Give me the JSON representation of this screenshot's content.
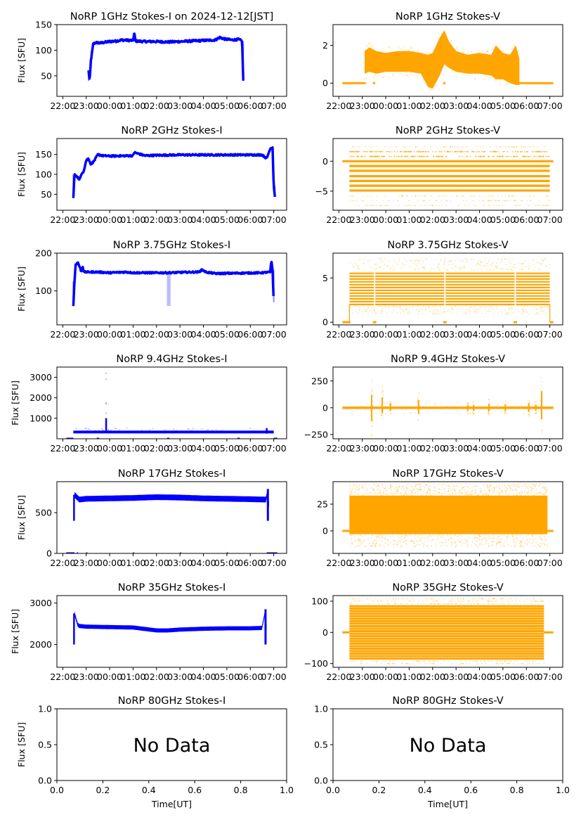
{
  "chart_data": [
    {
      "id": "i1",
      "type": "scatter",
      "title": "NoRP 1GHz Stokes-I on 2024-12-12[JST]",
      "ylabel": "Flux [SFU]",
      "xlabel": "",
      "color": "#0000ff",
      "xticks": [
        "22:00",
        "23:00",
        "00:00",
        "01:00",
        "02:00",
        "03:00",
        "04:00",
        "05:00",
        "06:00",
        "07:00"
      ],
      "xlim_hours": [
        -0.25,
        9.55
      ],
      "yticks": [
        50,
        100,
        150
      ],
      "ylim": [
        10,
        150
      ],
      "series": {
        "name": "Stokes-I",
        "start_h": 1.1,
        "end_h": 7.7,
        "points": [
          [
            1.1,
            60
          ],
          [
            1.15,
            40
          ],
          [
            1.2,
            80
          ],
          [
            1.3,
            112
          ],
          [
            1.4,
            115
          ],
          [
            1.6,
            114
          ],
          [
            2.0,
            117
          ],
          [
            2.3,
            118
          ],
          [
            2.5,
            120
          ],
          [
            3.0,
            119
          ],
          [
            3.05,
            135
          ],
          [
            3.1,
            118
          ],
          [
            3.5,
            117
          ],
          [
            4.0,
            117
          ],
          [
            4.5,
            116
          ],
          [
            5.0,
            117
          ],
          [
            5.5,
            118
          ],
          [
            6.0,
            119
          ],
          [
            6.5,
            120
          ],
          [
            6.7,
            125
          ],
          [
            6.9,
            122
          ],
          [
            7.2,
            120
          ],
          [
            7.5,
            121
          ],
          [
            7.65,
            118
          ],
          [
            7.7,
            40
          ]
        ]
      }
    },
    {
      "id": "v1",
      "type": "scatter",
      "title": "NoRP 1GHz Stokes-V",
      "ylabel": "",
      "xlabel": "",
      "color": "#ffa500",
      "xticks": [
        "22:00",
        "23:00",
        "00:00",
        "01:00",
        "02:00",
        "03:00",
        "04:00",
        "05:00",
        "06:00",
        "07:00"
      ],
      "xlim_hours": [
        -0.25,
        9.55
      ],
      "yticks": [
        0,
        2
      ],
      "ylim": [
        -0.7,
        3.1
      ],
      "series": {
        "name": "Stokes-V",
        "zero_segments": [
          [
            0.15,
            1.15
          ],
          [
            1.45,
            1.55
          ],
          [
            4.45,
            4.55
          ],
          [
            7.45,
            9.15
          ]
        ],
        "band": [
          [
            1.1,
            0.5,
            1.7
          ],
          [
            1.3,
            0.6,
            1.9
          ],
          [
            1.6,
            0.5,
            1.7
          ],
          [
            2.0,
            0.6,
            1.6
          ],
          [
            2.5,
            0.6,
            1.7
          ],
          [
            3.0,
            0.6,
            1.7
          ],
          [
            3.5,
            0.5,
            1.6
          ],
          [
            3.8,
            -0.2,
            1.5
          ],
          [
            4.0,
            -0.3,
            1.6
          ],
          [
            4.3,
            0.4,
            2.4
          ],
          [
            4.5,
            1.0,
            2.8
          ],
          [
            4.7,
            0.8,
            2.2
          ],
          [
            5.0,
            0.6,
            1.7
          ],
          [
            5.5,
            0.5,
            1.5
          ],
          [
            6.0,
            0.5,
            1.6
          ],
          [
            6.5,
            0.4,
            1.5
          ],
          [
            6.7,
            0.2,
            2.0
          ],
          [
            7.0,
            0.2,
            1.6
          ],
          [
            7.3,
            0.0,
            1.5
          ],
          [
            7.55,
            -0.1,
            2.0
          ],
          [
            7.7,
            -0.1,
            1.3
          ]
        ]
      }
    },
    {
      "id": "i2",
      "type": "scatter",
      "title": "NoRP 2GHz Stokes-I",
      "ylabel": "Flux [SFU]",
      "xlabel": "",
      "color": "#0000ff",
      "xticks": [
        "22:00",
        "23:00",
        "00:00",
        "01:00",
        "02:00",
        "03:00",
        "04:00",
        "05:00",
        "06:00",
        "07:00"
      ],
      "xlim_hours": [
        -0.25,
        9.55
      ],
      "yticks": [
        50,
        100,
        150
      ],
      "ylim": [
        10,
        190
      ],
      "series": {
        "name": "Stokes-I",
        "points": [
          [
            0.45,
            40
          ],
          [
            0.5,
            100
          ],
          [
            0.7,
            88
          ],
          [
            0.9,
            110
          ],
          [
            1.0,
            135
          ],
          [
            1.1,
            140
          ],
          [
            1.2,
            125
          ],
          [
            1.35,
            135
          ],
          [
            1.5,
            150
          ],
          [
            1.7,
            147
          ],
          [
            2.0,
            146
          ],
          [
            3.0,
            147
          ],
          [
            3.05,
            155
          ],
          [
            3.5,
            147
          ],
          [
            4.0,
            148
          ],
          [
            5.0,
            149
          ],
          [
            6.0,
            149
          ],
          [
            7.0,
            149
          ],
          [
            8.0,
            149
          ],
          [
            8.5,
            149
          ],
          [
            8.7,
            140
          ],
          [
            8.85,
            165
          ],
          [
            8.95,
            168
          ],
          [
            9.0,
            70
          ],
          [
            9.05,
            45
          ]
        ]
      }
    },
    {
      "id": "v2",
      "type": "scatter",
      "title": "NoRP 2GHz Stokes-V",
      "ylabel": "",
      "xlabel": "",
      "color": "#ffa500",
      "xticks": [
        "22:00",
        "23:00",
        "00:00",
        "01:00",
        "02:00",
        "03:00",
        "04:00",
        "05:00",
        "06:00",
        "07:00"
      ],
      "xlim_hours": [
        -0.25,
        9.55
      ],
      "yticks": [
        -5,
        0
      ],
      "ylim": [
        -8.2,
        3.8
      ],
      "series": {
        "name": "Stokes-V",
        "quantized_levels": [
          -7.4,
          -6.6,
          -5.8,
          -4.9,
          -4.1,
          -3.3,
          -2.5,
          -1.6,
          -0.8,
          0,
          0.8,
          1.6,
          2.4
        ],
        "dense_levels": [
          -4.9,
          -4.1,
          -3.3,
          -2.5,
          -1.6,
          -0.8,
          0
        ],
        "start_h": 0.45,
        "end_h": 9.0,
        "zero_segments": [
          [
            0.15,
            0.45
          ],
          [
            9.0,
            9.15
          ]
        ]
      }
    },
    {
      "id": "i3",
      "type": "scatter",
      "title": "NoRP 3.75GHz Stokes-I",
      "ylabel": "Flux [SFU]",
      "xlabel": "",
      "color": "#0000ff",
      "xticks": [
        "22:00",
        "23:00",
        "00:00",
        "01:00",
        "02:00",
        "03:00",
        "04:00",
        "05:00",
        "06:00",
        "07:00"
      ],
      "xlim_hours": [
        -0.25,
        9.55
      ],
      "yticks": [
        100,
        200
      ],
      "ylim": [
        10,
        200
      ],
      "series": {
        "name": "Stokes-I",
        "points": [
          [
            0.45,
            60
          ],
          [
            0.5,
            125
          ],
          [
            0.55,
            170
          ],
          [
            0.65,
            175
          ],
          [
            0.8,
            150
          ],
          [
            0.85,
            165
          ],
          [
            0.9,
            150
          ],
          [
            1.5,
            150
          ],
          [
            2.0,
            148
          ],
          [
            2.7,
            150
          ],
          [
            3.0,
            148
          ],
          [
            4.0,
            148
          ],
          [
            4.5,
            148
          ],
          [
            5.0,
            149
          ],
          [
            5.8,
            150
          ],
          [
            5.95,
            156
          ],
          [
            6.1,
            150
          ],
          [
            6.5,
            146
          ],
          [
            7.5,
            147
          ],
          [
            8.5,
            148
          ],
          [
            8.85,
            150
          ],
          [
            8.9,
            180
          ],
          [
            8.95,
            155
          ],
          [
            9.0,
            70
          ]
        ],
        "dropout": {
          "start_h": 4.45,
          "end_h": 4.6,
          "min": 60
        }
      }
    },
    {
      "id": "v3",
      "type": "scatter",
      "title": "NoRP 3.75GHz Stokes-V",
      "ylabel": "",
      "xlabel": "",
      "color": "#ffa500",
      "xticks": [
        "22:00",
        "23:00",
        "00:00",
        "01:00",
        "02:00",
        "03:00",
        "04:00",
        "05:00",
        "06:00",
        "07:00"
      ],
      "xlim_hours": [
        -0.25,
        9.55
      ],
      "yticks": [
        0,
        5
      ],
      "ylim": [
        -0.3,
        7.8
      ],
      "series": {
        "name": "Stokes-V",
        "band_min": 2.0,
        "band_max": 5.8,
        "scatter_min": 0.9,
        "scatter_max": 7.2,
        "start_h": 0.45,
        "end_h": 9.0,
        "gaps_h": [
          1.5,
          4.5,
          7.5
        ],
        "zero_segments": [
          [
            0.15,
            0.5
          ],
          [
            1.45,
            1.6
          ],
          [
            4.45,
            4.6
          ],
          [
            7.45,
            7.6
          ],
          [
            9.0,
            9.15
          ]
        ]
      }
    },
    {
      "id": "i4",
      "type": "scatter",
      "title": "NoRP 9.4GHz Stokes-I",
      "ylabel": "Flux [SFU]",
      "xlabel": "",
      "color": "#0000ff",
      "xticks": [
        "22:00",
        "23:00",
        "00:00",
        "01:00",
        "02:00",
        "03:00",
        "04:00",
        "05:00",
        "06:00",
        "07:00"
      ],
      "xlim_hours": [
        -0.25,
        9.55
      ],
      "yticks": [
        1000,
        2000,
        3000
      ],
      "ylim": [
        0,
        3500
      ],
      "series": {
        "name": "Stokes-I",
        "baseline": 330,
        "start_h": 0.45,
        "end_h": 9.0,
        "spike": {
          "h": 1.85,
          "values": [
            500,
            800,
            1000,
            1250,
            1700,
            1750,
            2900,
            3200
          ]
        },
        "zero_segments": [
          [
            0.15,
            0.45
          ],
          [
            1.45,
            1.55
          ],
          [
            4.45,
            4.55
          ],
          [
            7.45,
            7.55
          ],
          [
            9.0,
            9.15
          ]
        ]
      }
    },
    {
      "id": "v4",
      "type": "scatter",
      "title": "NoRP 9.4GHz Stokes-V",
      "ylabel": "",
      "xlabel": "",
      "color": "#ffa500",
      "xticks": [
        "22:00",
        "23:00",
        "00:00",
        "01:00",
        "02:00",
        "03:00",
        "04:00",
        "05:00",
        "06:00",
        "07:00"
      ],
      "xlim_hours": [
        -0.25,
        9.55
      ],
      "yticks": [
        -250,
        0,
        250
      ],
      "ylim": [
        -290,
        380
      ],
      "series": {
        "name": "Stokes-V",
        "start_h": 0.15,
        "end_h": 9.15,
        "bursts": [
          [
            1.4,
            270,
            -280
          ],
          [
            1.85,
            220,
            -120
          ],
          [
            2.2,
            80,
            -60
          ],
          [
            3.4,
            160,
            -130
          ],
          [
            5.5,
            50,
            -60
          ],
          [
            5.75,
            60,
            -60
          ],
          [
            6.4,
            80,
            -80
          ],
          [
            7.1,
            70,
            -70
          ],
          [
            8.1,
            90,
            -90
          ],
          [
            8.4,
            60,
            -60
          ],
          [
            8.65,
            350,
            -240
          ]
        ]
      }
    },
    {
      "id": "i5",
      "type": "scatter",
      "title": "NoRP 17GHz Stokes-I",
      "ylabel": "Flux [SFU]",
      "xlabel": "",
      "color": "#0000ff",
      "xticks": [
        "22:00",
        "23:00",
        "00:00",
        "01:00",
        "02:00",
        "03:00",
        "04:00",
        "05:00",
        "06:00",
        "07:00"
      ],
      "xlim_hours": [
        -0.25,
        9.55
      ],
      "yticks": [
        0,
        500
      ],
      "ylim": [
        0,
        880
      ],
      "series": {
        "name": "Stokes-I",
        "start_h": 0.45,
        "end_h": 8.85,
        "points": [
          [
            0.45,
            400
          ],
          [
            0.5,
            720
          ],
          [
            0.7,
            660
          ],
          [
            1.0,
            670
          ],
          [
            2.0,
            675
          ],
          [
            3.0,
            680
          ],
          [
            4.0,
            690
          ],
          [
            5.0,
            685
          ],
          [
            6.0,
            675
          ],
          [
            7.0,
            670
          ],
          [
            8.0,
            665
          ],
          [
            8.7,
            660
          ],
          [
            8.75,
            790
          ],
          [
            8.85,
            400
          ]
        ],
        "noise": 35,
        "zero_segments": [
          [
            0.15,
            0.5
          ],
          [
            0.6,
            0.65
          ],
          [
            1.0,
            1.05
          ],
          [
            3.0,
            3.05
          ],
          [
            5.0,
            5.05
          ],
          [
            7.0,
            7.05
          ],
          [
            8.7,
            9.15
          ]
        ]
      }
    },
    {
      "id": "v5",
      "type": "scatter",
      "title": "NoRP 17GHz Stokes-V",
      "ylabel": "",
      "xlabel": "",
      "color": "#ffa500",
      "xticks": [
        "22:00",
        "23:00",
        "00:00",
        "01:00",
        "02:00",
        "03:00",
        "04:00",
        "05:00",
        "06:00",
        "07:00"
      ],
      "xlim_hours": [
        -0.25,
        9.55
      ],
      "yticks": [
        0,
        25
      ],
      "ylim": [
        -21,
        46
      ],
      "series": {
        "name": "Stokes-V",
        "band_min": -3,
        "band_max": 33,
        "scatter_min": -15,
        "scatter_max": 44,
        "start_h": 0.45,
        "end_h": 8.9,
        "zero_segments": [
          [
            0.15,
            0.45
          ],
          [
            8.9,
            9.15
          ]
        ]
      }
    },
    {
      "id": "i6",
      "type": "scatter",
      "title": "NoRP 35GHz Stokes-I",
      "ylabel": "Flux [SFU]",
      "xlabel": "",
      "color": "#0000ff",
      "xticks": [
        "22:00",
        "23:00",
        "00:00",
        "01:00",
        "02:00",
        "03:00",
        "04:00",
        "05:00",
        "06:00",
        "07:00"
      ],
      "xlim_hours": [
        -0.25,
        9.55
      ],
      "yticks": [
        2000,
        3000
      ],
      "ylim": [
        1450,
        3180
      ],
      "series": {
        "name": "Stokes-I",
        "points": [
          [
            0.45,
            2000
          ],
          [
            0.5,
            2750
          ],
          [
            0.65,
            2450
          ],
          [
            1.0,
            2430
          ],
          [
            2.0,
            2420
          ],
          [
            3.0,
            2410
          ],
          [
            4.0,
            2340
          ],
          [
            4.5,
            2340
          ],
          [
            5.0,
            2360
          ],
          [
            6.0,
            2380
          ],
          [
            7.0,
            2390
          ],
          [
            8.0,
            2390
          ],
          [
            8.5,
            2400
          ],
          [
            8.65,
            2850
          ],
          [
            8.75,
            2000
          ]
        ],
        "noise": 50
      }
    },
    {
      "id": "v6",
      "type": "scatter",
      "title": "NoRP 35GHz Stokes-V",
      "ylabel": "",
      "xlabel": "",
      "color": "#ffa500",
      "xticks": [
        "22:00",
        "23:00",
        "00:00",
        "01:00",
        "02:00",
        "03:00",
        "04:00",
        "05:00",
        "06:00",
        "07:00"
      ],
      "xlim_hours": [
        -0.25,
        9.55
      ],
      "yticks": [
        -100,
        0,
        100
      ],
      "ylim": [
        -112,
        118
      ],
      "series": {
        "name": "Stokes-V",
        "level_step": 8,
        "band_min": -90,
        "band_max": 85,
        "start_h": 0.45,
        "end_h": 8.75,
        "zero_segments": [
          [
            0.15,
            0.45
          ],
          [
            8.75,
            9.15
          ]
        ]
      }
    },
    {
      "id": "i7",
      "type": "empty",
      "title": "NoRP 80GHz Stokes-I",
      "ylabel": "Flux [SFU]",
      "xlabel": "Time[UT]",
      "annotation": "No Data",
      "xticks": [
        "0.0",
        "0.2",
        "0.4",
        "0.6",
        "0.8",
        "1.0"
      ],
      "xlim": [
        0,
        1
      ],
      "yticks": [
        "0.0",
        "0.5",
        "1.0"
      ],
      "ylim": [
        0,
        1
      ]
    },
    {
      "id": "v7",
      "type": "empty",
      "title": "NoRP 80GHz Stokes-V",
      "ylabel": "",
      "xlabel": "Time[UT]",
      "annotation": "No Data",
      "xticks": [
        "0.0",
        "0.2",
        "0.4",
        "0.6",
        "0.8",
        "1.0"
      ],
      "xlim": [
        0,
        1
      ],
      "yticks": [
        "0.0",
        "0.5",
        "1.0"
      ],
      "ylim": [
        0,
        1
      ]
    }
  ]
}
